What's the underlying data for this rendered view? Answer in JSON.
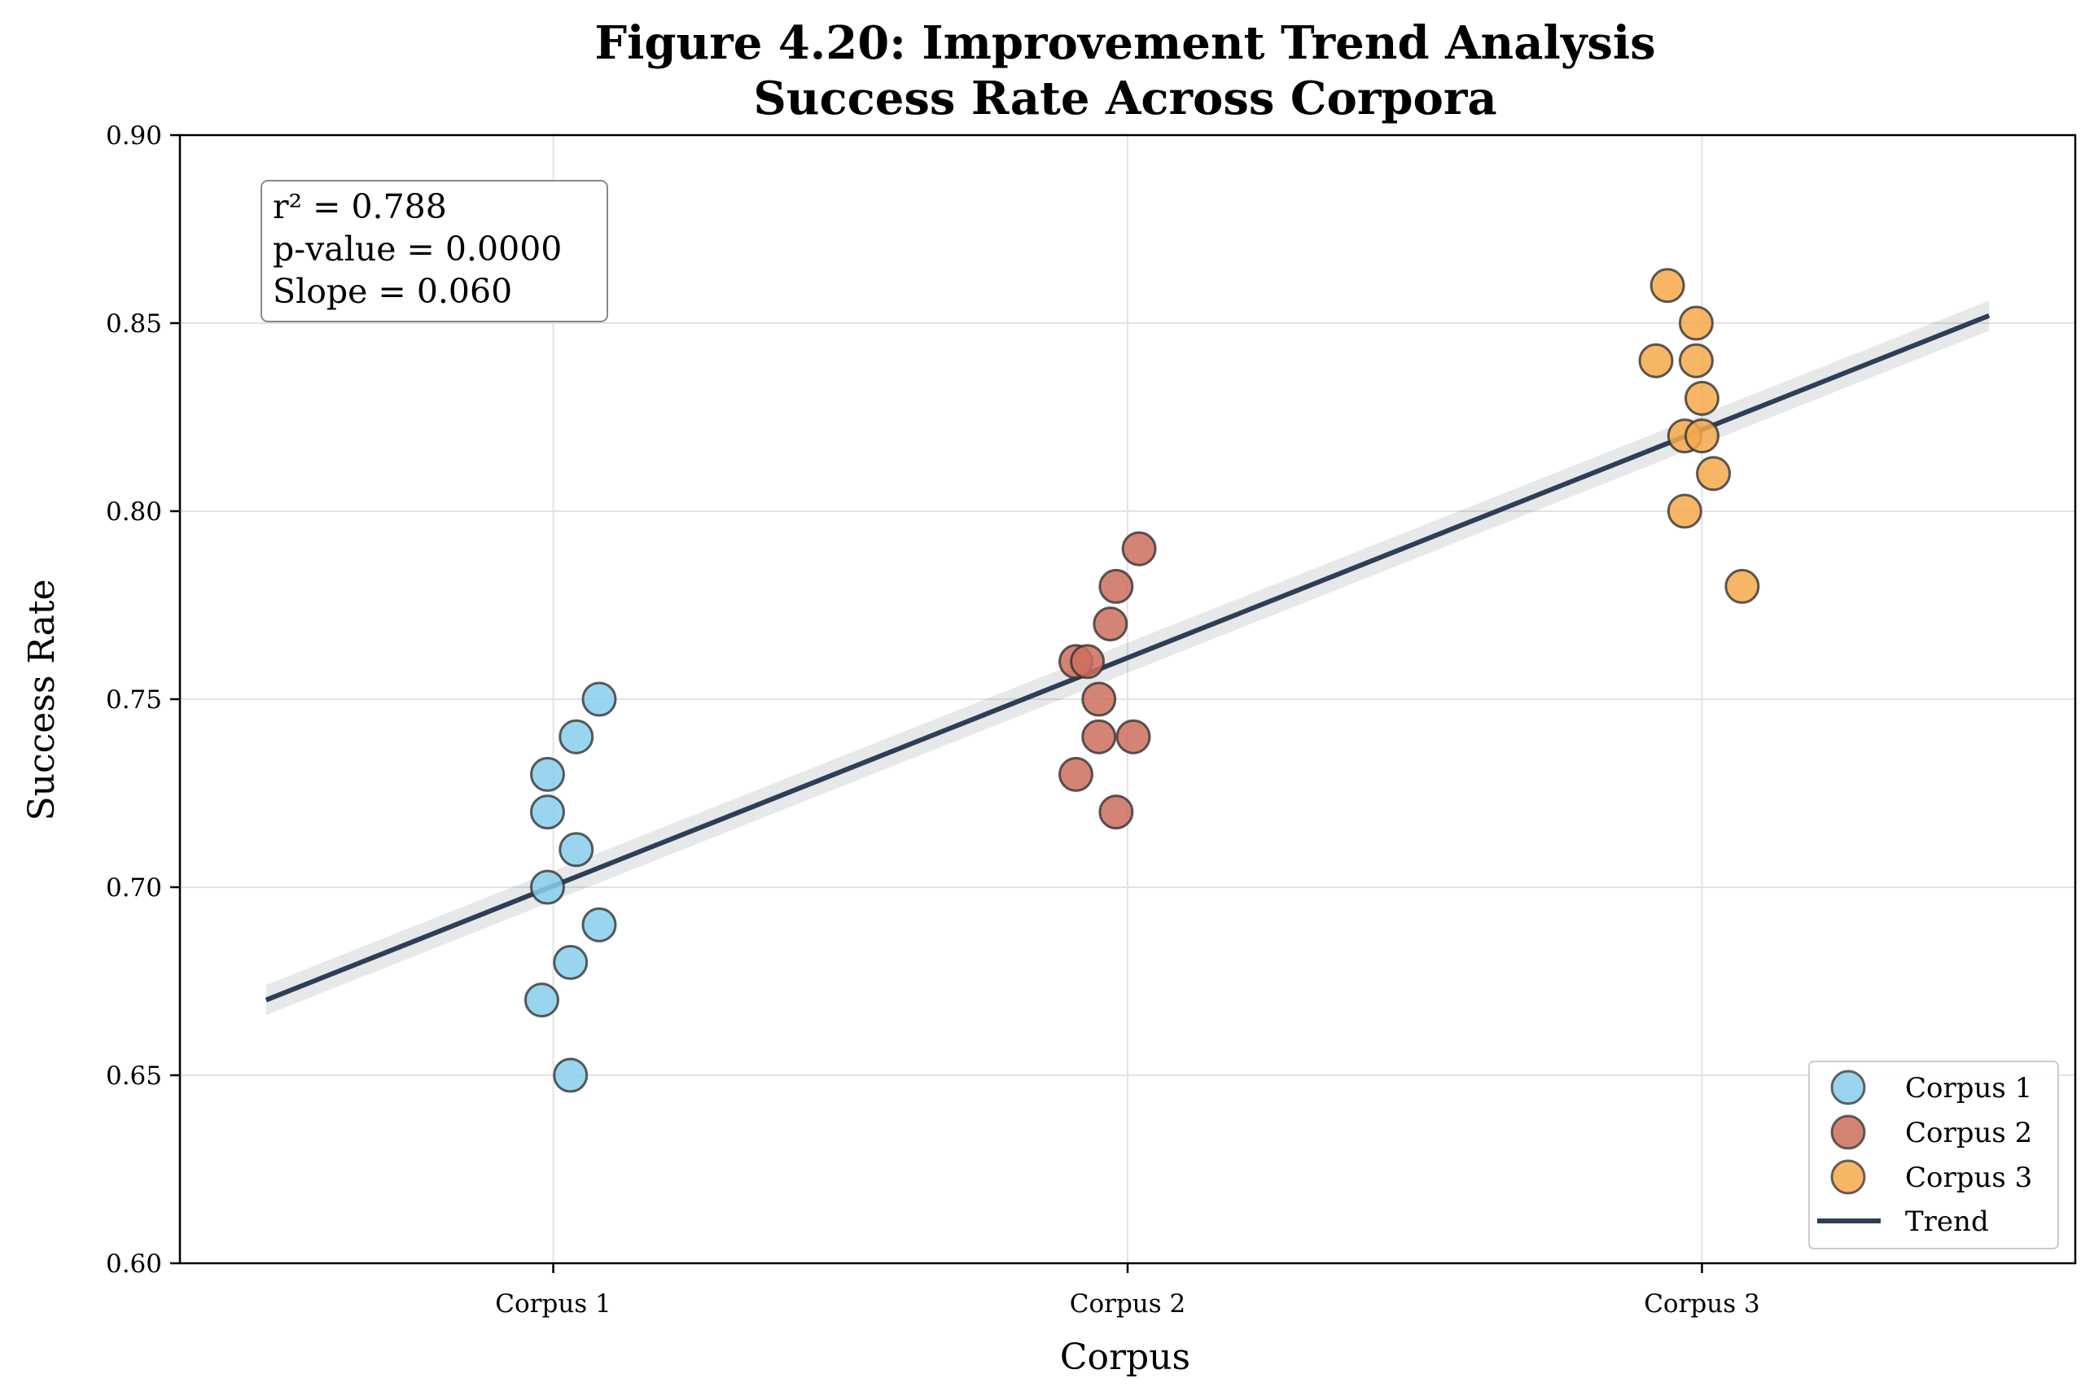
{
  "chart_data": {
    "type": "scatter",
    "title": "Figure 4.20: Improvement Trend Analysis",
    "subtitle": "Success Rate Across Corpora",
    "xlabel": "Corpus",
    "ylabel": "Success Rate",
    "categories": [
      "Corpus 1",
      "Corpus 2",
      "Corpus 3"
    ],
    "ylim": [
      0.6,
      0.9
    ],
    "yticks": [
      "0.60",
      "0.65",
      "0.70",
      "0.75",
      "0.80",
      "0.85",
      "0.90"
    ],
    "grid": true,
    "legend_position": "bottom-right",
    "series": [
      {
        "name": "Corpus 1",
        "color": "#87CEEB",
        "x": [
          1.08,
          1.04,
          0.99,
          0.99,
          1.04,
          0.99,
          1.08,
          1.03,
          0.98,
          1.03
        ],
        "values": [
          0.75,
          0.74,
          0.73,
          0.72,
          0.71,
          0.7,
          0.69,
          0.68,
          0.67,
          0.65
        ]
      },
      {
        "name": "Corpus 2",
        "color": "#CD6F5D",
        "x": [
          2.02,
          1.98,
          1.97,
          1.91,
          1.93,
          1.95,
          1.95,
          2.01,
          1.91,
          1.98
        ],
        "values": [
          0.79,
          0.78,
          0.77,
          0.76,
          0.76,
          0.75,
          0.74,
          0.74,
          0.73,
          0.72
        ]
      },
      {
        "name": "Corpus 3",
        "color": "#F5A94B",
        "x": [
          2.94,
          2.99,
          2.92,
          2.99,
          3.0,
          2.97,
          3.0,
          3.02,
          2.97,
          3.07
        ],
        "values": [
          0.86,
          0.85,
          0.84,
          0.84,
          0.83,
          0.82,
          0.82,
          0.81,
          0.8,
          0.78
        ]
      }
    ],
    "trend": {
      "name": "Trend",
      "color": "#2E3E55",
      "x": [
        0.5,
        3.5
      ],
      "values": [
        0.67,
        0.852
      ],
      "band_halfwidth": 0.004
    },
    "xlim": [
      0.35,
      3.65
    ],
    "stats": {
      "line1": "r² = 0.788",
      "line2": "p-value = 0.0000",
      "line3": "Slope = 0.060"
    }
  }
}
